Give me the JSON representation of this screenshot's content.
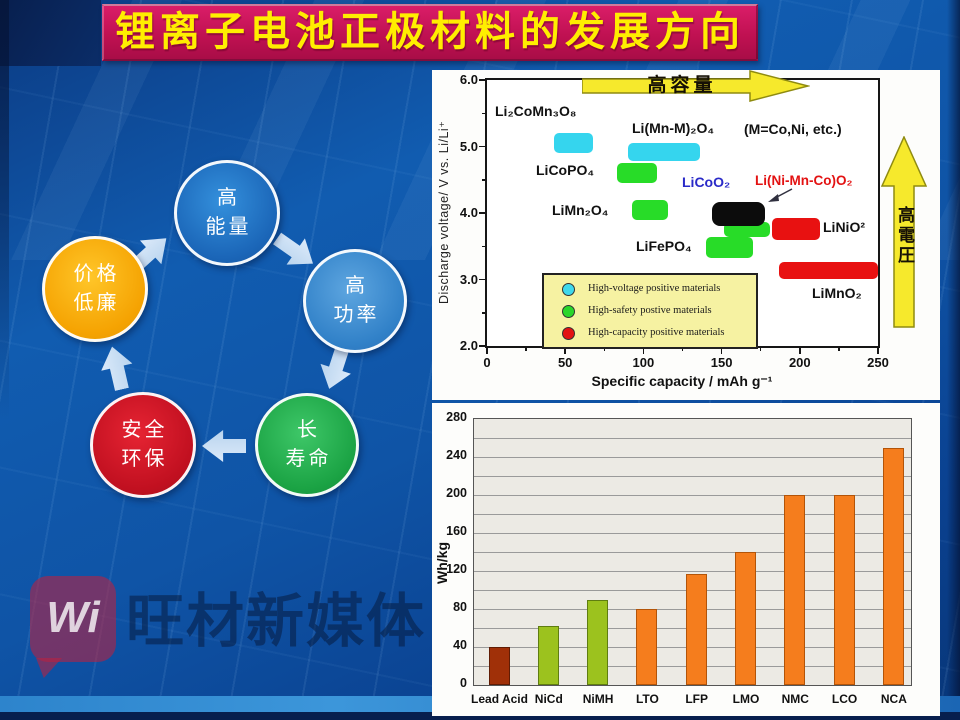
{
  "slide_title": "锂离子电池正极材料的发展方向",
  "cycle_diagram": {
    "nodes": [
      {
        "id": "high-energy",
        "line1": "高",
        "line2": "能量",
        "color": "#1b66b8"
      },
      {
        "id": "high-power",
        "line1": "高",
        "line2": "功率",
        "color": "#3181c8"
      },
      {
        "id": "long-life",
        "line1": "长",
        "line2": "寿命",
        "color": "#1ba344"
      },
      {
        "id": "safe-eco",
        "line1": "安全",
        "line2": "环保",
        "color": "#c11020"
      },
      {
        "id": "low-cost",
        "line1": "价格",
        "line2": "低廉",
        "color": "#f5a302"
      }
    ]
  },
  "chart_data": [
    {
      "type": "scatter",
      "title": "",
      "xlabel": "Specific capacity / mAh g⁻¹",
      "ylabel": "Discharge voltage/ V vs. Li/Li⁺",
      "xlim": [
        0,
        250
      ],
      "ylim": [
        2.0,
        6.0
      ],
      "x_major_ticks": [
        0,
        50,
        100,
        150,
        200,
        250
      ],
      "y_major_ticks": [
        "2.0",
        "3.0",
        "4.0",
        "5.0",
        "6.0"
      ],
      "annotations": {
        "top_arrow": "高容量",
        "right_arrow": "高電圧",
        "note": "(M=Co,Ni, etc.)"
      },
      "category_colors": {
        "high-voltage": "#35d5ee",
        "high-safety": "#28dc28",
        "high-capacity": "#e81111",
        "highlight-black": "#0c0c0c"
      },
      "materials": [
        {
          "name": "Li₂CoMn₃O₈",
          "category": "high-voltage",
          "capacity": [
            43,
            68
          ],
          "voltage": [
            4.9,
            5.2
          ]
        },
        {
          "name": "Li(Mn-M)₂O₄",
          "category": "high-voltage",
          "capacity": [
            90,
            136
          ],
          "voltage": [
            4.78,
            5.05
          ]
        },
        {
          "name": "LiCoPO₄",
          "category": "high-safety",
          "capacity": [
            83,
            109
          ],
          "voltage": [
            4.45,
            4.75
          ]
        },
        {
          "name": "LiMn₂O₄",
          "category": "high-safety",
          "capacity": [
            93,
            116
          ],
          "voltage": [
            3.9,
            4.2
          ]
        },
        {
          "name": "LiCoO₂",
          "category": "highlight-black",
          "capacity": [
            144,
            178
          ],
          "voltage": [
            3.8,
            4.17
          ],
          "label_color": "#2a2ac8"
        },
        {
          "name": "Li(Ni-Mn-Co)O₂",
          "category": "label-only",
          "label_color": "#e31212"
        },
        {
          "name": "LiNiO²",
          "category": "high-capacity",
          "capacity": [
            182,
            213
          ],
          "voltage": [
            3.6,
            3.93
          ]
        },
        {
          "name": "LiFePO₄",
          "category": "high-safety",
          "capacity": [
            140,
            170
          ],
          "voltage": [
            3.33,
            3.64
          ]
        },
        {
          "name": "LiMnO₂",
          "category": "high-capacity",
          "capacity": [
            187,
            252
          ],
          "voltage": [
            3.0,
            3.27
          ]
        }
      ],
      "legend": [
        {
          "color": "#3fd9ec",
          "label": "High-voltage positive materials"
        },
        {
          "color": "#2bd62b",
          "label": "High-safety postive materials"
        },
        {
          "color": "#e31212",
          "label": "High-capacity positive materials"
        }
      ]
    },
    {
      "type": "bar",
      "categories": [
        "Lead Acid",
        "NiCd",
        "NiMH",
        "LTO",
        "LFP",
        "LMO",
        "NMC",
        "LCO",
        "NCA"
      ],
      "values": [
        40,
        62,
        90,
        80,
        117,
        140,
        200,
        200,
        250
      ],
      "ylabel": "Wh/kg",
      "xlabel": "",
      "ylim": [
        0,
        280
      ],
      "y_major_ticks": [
        0,
        40,
        80,
        120,
        160,
        200,
        240,
        280
      ],
      "gridline_step": 20,
      "bar_colors": [
        "#a03008",
        "#9cc21e",
        "#9cc21e",
        "#f57d1d",
        "#f57d1d",
        "#f57d1d",
        "#f57d1d",
        "#f57d1d",
        "#f57d1d"
      ],
      "bar_border_colors": [
        "#601c04",
        "#5f7d10",
        "#5f7d10",
        "#b35408",
        "#b35408",
        "#b35408",
        "#b35408",
        "#b35408",
        "#b35408"
      ]
    }
  ],
  "watermark": {
    "logo_text": "Wi",
    "text": "旺材新媒体"
  },
  "colors": {
    "banner_bg": "#c61157",
    "banner_text": "#ffee00",
    "slide_bg": "#0f54a6",
    "arrow_yellow": "#f6e92c"
  }
}
